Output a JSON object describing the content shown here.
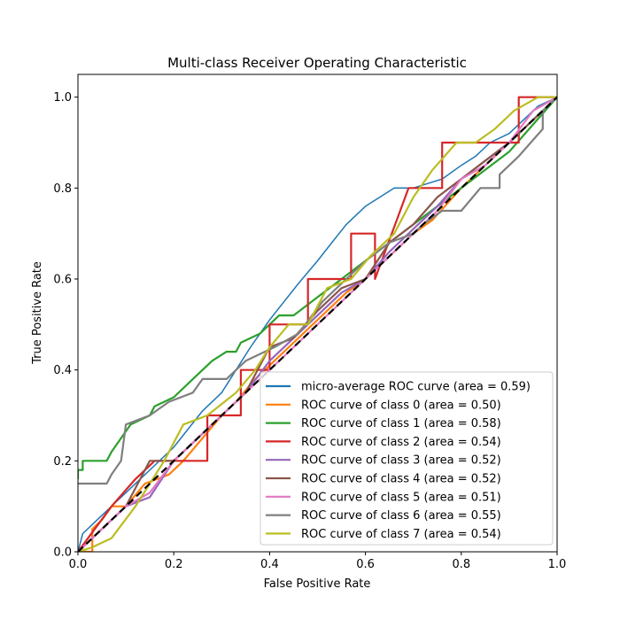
{
  "chart_data": {
    "type": "line",
    "title": "Multi-class Receiver Operating Characteristic",
    "xlabel": "False Positive Rate",
    "ylabel": "True Positive Rate",
    "xlim": [
      0.0,
      1.0
    ],
    "ylim": [
      0.0,
      1.05
    ],
    "xticks": [
      "0.0",
      "0.2",
      "0.4",
      "0.6",
      "0.8",
      "1.0"
    ],
    "yticks": [
      "0.0",
      "0.2",
      "0.4",
      "0.6",
      "0.8",
      "1.0"
    ],
    "grid": false,
    "legend_position": "lower right",
    "series": [
      {
        "name": "micro-average ROC curve (area = 0.59)",
        "color": "#1f77b4",
        "x": [
          0.0,
          0.01,
          0.03,
          0.05,
          0.08,
          0.1,
          0.13,
          0.16,
          0.2,
          0.23,
          0.26,
          0.3,
          0.33,
          0.36,
          0.4,
          0.43,
          0.46,
          0.5,
          0.53,
          0.56,
          0.6,
          0.63,
          0.66,
          0.7,
          0.73,
          0.76,
          0.8,
          0.83,
          0.86,
          0.9,
          0.93,
          0.96,
          1.0
        ],
        "y": [
          0.0,
          0.04,
          0.06,
          0.08,
          0.11,
          0.13,
          0.16,
          0.19,
          0.23,
          0.27,
          0.31,
          0.35,
          0.4,
          0.45,
          0.51,
          0.55,
          0.59,
          0.64,
          0.68,
          0.72,
          0.76,
          0.78,
          0.8,
          0.8,
          0.81,
          0.82,
          0.85,
          0.87,
          0.9,
          0.92,
          0.95,
          0.98,
          1.0
        ]
      },
      {
        "name": "ROC curve of class 0 (area = 0.50)",
        "color": "#ff7f0e",
        "x": [
          0.0,
          0.03,
          0.03,
          0.05,
          0.07,
          0.1,
          0.14,
          0.19,
          0.22,
          0.26,
          0.3,
          0.33,
          0.37,
          0.41,
          0.46,
          0.51,
          0.56,
          0.6,
          0.65,
          0.7,
          0.74,
          0.8,
          0.85,
          0.9,
          0.95,
          1.0
        ],
        "y": [
          0.0,
          0.0,
          0.05,
          0.07,
          0.1,
          0.1,
          0.15,
          0.17,
          0.2,
          0.25,
          0.3,
          0.33,
          0.38,
          0.42,
          0.47,
          0.52,
          0.57,
          0.6,
          0.65,
          0.7,
          0.73,
          0.8,
          0.85,
          0.9,
          0.95,
          1.0
        ]
      },
      {
        "name": "ROC curve of class 1 (area = 0.58)",
        "color": "#2ca02c",
        "x": [
          0.0,
          0.0,
          0.01,
          0.01,
          0.06,
          0.07,
          0.11,
          0.15,
          0.16,
          0.2,
          0.24,
          0.28,
          0.31,
          0.33,
          0.34,
          0.38,
          0.42,
          0.45,
          0.5,
          0.55,
          0.6,
          0.65,
          0.7,
          0.75,
          0.8,
          0.85,
          0.9,
          0.95,
          1.0
        ],
        "y": [
          0.16,
          0.18,
          0.18,
          0.2,
          0.2,
          0.22,
          0.28,
          0.3,
          0.32,
          0.34,
          0.38,
          0.42,
          0.44,
          0.44,
          0.46,
          0.48,
          0.52,
          0.52,
          0.56,
          0.6,
          0.64,
          0.68,
          0.72,
          0.76,
          0.8,
          0.84,
          0.88,
          0.94,
          1.0
        ]
      },
      {
        "name": "ROC curve of class 2 (area = 0.54)",
        "color": "#d62728",
        "x": [
          0.0,
          0.07,
          0.07,
          0.12,
          0.16,
          0.27,
          0.27,
          0.34,
          0.34,
          0.4,
          0.4,
          0.48,
          0.48,
          0.57,
          0.57,
          0.62,
          0.62,
          0.69,
          0.69,
          0.76,
          0.76,
          0.86,
          0.86,
          0.92,
          0.92,
          1.0
        ],
        "y": [
          0.0,
          0.1,
          0.1,
          0.16,
          0.2,
          0.2,
          0.3,
          0.3,
          0.4,
          0.4,
          0.5,
          0.5,
          0.6,
          0.6,
          0.7,
          0.7,
          0.6,
          0.8,
          0.8,
          0.8,
          0.9,
          0.9,
          0.9,
          0.9,
          1.0,
          1.0
        ]
      },
      {
        "name": "ROC curve of class 3 (area = 0.52)",
        "color": "#9467bd",
        "x": [
          0.0,
          0.05,
          0.1,
          0.15,
          0.2,
          0.25,
          0.3,
          0.35,
          0.4,
          0.45,
          0.5,
          0.55,
          0.6,
          0.65,
          0.7,
          0.75,
          0.8,
          0.85,
          0.9,
          0.95,
          1.0
        ],
        "y": [
          0.0,
          0.05,
          0.1,
          0.12,
          0.2,
          0.25,
          0.3,
          0.35,
          0.42,
          0.47,
          0.52,
          0.57,
          0.6,
          0.66,
          0.71,
          0.76,
          0.82,
          0.86,
          0.9,
          0.95,
          1.0
        ]
      },
      {
        "name": "ROC curve of class 4 (area = 0.52)",
        "color": "#8c564b",
        "x": [
          0.0,
          0.05,
          0.1,
          0.15,
          0.2,
          0.25,
          0.3,
          0.35,
          0.4,
          0.45,
          0.5,
          0.55,
          0.6,
          0.65,
          0.7,
          0.75,
          0.8,
          0.85,
          0.9,
          0.95,
          1.0
        ],
        "y": [
          0.0,
          0.05,
          0.1,
          0.2,
          0.2,
          0.25,
          0.3,
          0.35,
          0.45,
          0.47,
          0.53,
          0.58,
          0.6,
          0.68,
          0.72,
          0.78,
          0.82,
          0.86,
          0.9,
          0.95,
          1.0
        ]
      },
      {
        "name": "ROC curve of class 5 (area = 0.51)",
        "color": "#e377c2",
        "x": [
          0.0,
          0.05,
          0.1,
          0.15,
          0.2,
          0.25,
          0.3,
          0.35,
          0.4,
          0.45,
          0.5,
          0.55,
          0.6,
          0.65,
          0.7,
          0.75,
          0.8,
          0.85,
          0.9,
          0.95,
          1.0
        ],
        "y": [
          0.0,
          0.05,
          0.1,
          0.13,
          0.2,
          0.25,
          0.3,
          0.35,
          0.4,
          0.45,
          0.5,
          0.55,
          0.6,
          0.65,
          0.7,
          0.75,
          0.82,
          0.85,
          0.9,
          0.97,
          1.0
        ]
      },
      {
        "name": "ROC curve of class 6 (area = 0.55)",
        "color": "#7f7f7f",
        "x": [
          0.0,
          0.06,
          0.07,
          0.09,
          0.1,
          0.15,
          0.19,
          0.24,
          0.26,
          0.31,
          0.35,
          0.41,
          0.46,
          0.51,
          0.56,
          0.6,
          0.65,
          0.7,
          0.72,
          0.76,
          0.8,
          0.84,
          0.88,
          0.88,
          0.92,
          0.97,
          0.97,
          1.0
        ],
        "y": [
          0.15,
          0.15,
          0.17,
          0.2,
          0.28,
          0.3,
          0.33,
          0.35,
          0.38,
          0.38,
          0.42,
          0.45,
          0.48,
          0.55,
          0.6,
          0.64,
          0.68,
          0.7,
          0.72,
          0.75,
          0.75,
          0.8,
          0.8,
          0.83,
          0.87,
          0.93,
          0.97,
          1.0
        ]
      },
      {
        "name": "ROC curve of class 7 (area = 0.54)",
        "color": "#bcbd22",
        "x": [
          0.0,
          0.03,
          0.07,
          0.12,
          0.18,
          0.22,
          0.27,
          0.33,
          0.37,
          0.4,
          0.44,
          0.48,
          0.52,
          0.57,
          0.61,
          0.66,
          0.7,
          0.74,
          0.79,
          0.83,
          0.87,
          0.91,
          0.96,
          1.0
        ],
        "y": [
          0.0,
          0.01,
          0.03,
          0.1,
          0.2,
          0.28,
          0.3,
          0.35,
          0.4,
          0.45,
          0.5,
          0.5,
          0.58,
          0.6,
          0.65,
          0.7,
          0.78,
          0.84,
          0.9,
          0.9,
          0.93,
          0.97,
          1.0,
          1.0
        ]
      }
    ],
    "reference_line": {
      "x": [
        0.0,
        1.0
      ],
      "y": [
        0.0,
        1.0
      ],
      "color": "#000000",
      "style": "dashed"
    }
  }
}
